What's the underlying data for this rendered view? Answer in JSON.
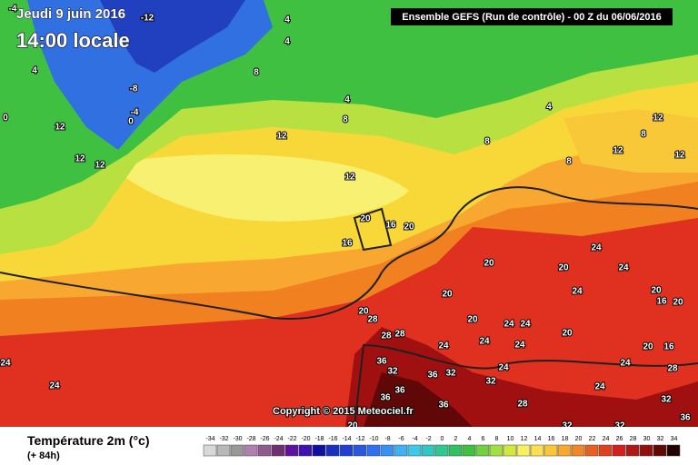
{
  "header": {
    "date": "Jeudi 9 juin 2016",
    "time": "14:00 locale",
    "run": "Ensemble GEFS  (Run de contrôle)  - 00 Z du 06/06/2016"
  },
  "copyright": "Copyright © 2015 Meteociel.fr",
  "legend": {
    "title": "Température 2m (°c)",
    "lead_time": "(+ 84h)",
    "values": [
      -34,
      -32,
      -30,
      -28,
      -26,
      -24,
      -22,
      -20,
      -18,
      -16,
      -14,
      -12,
      -10,
      -8,
      -6,
      -4,
      -2,
      0,
      2,
      4,
      6,
      8,
      10,
      12,
      14,
      16,
      18,
      20,
      22,
      24,
      26,
      28,
      30,
      32,
      34
    ],
    "colors": [
      "#d8d8d8",
      "#b8b8b8",
      "#989898",
      "#b080b0",
      "#905890",
      "#703070",
      "#6010a0",
      "#4010b0",
      "#1010a0",
      "#1830c0",
      "#2040d0",
      "#2858e0",
      "#3070f0",
      "#3890f0",
      "#40b0f0",
      "#40c8e8",
      "#30c8c0",
      "#30c890",
      "#30c060",
      "#40c040",
      "#70d040",
      "#a0e040",
      "#d0e840",
      "#f8f060",
      "#f8e050",
      "#f8c838",
      "#f8a830",
      "#f08828",
      "#e86020",
      "#e04020",
      "#d02020",
      "#b01818",
      "#901010",
      "#600808",
      "#200000"
    ]
  },
  "map_labels": [
    "-4",
    "-12",
    "4",
    "4",
    "4",
    "8",
    "-8",
    "4",
    "0",
    "-4",
    "0",
    "12",
    "8",
    "12",
    "12",
    "12",
    "4",
    "8",
    "12",
    "8",
    "12",
    "12",
    "8",
    "12",
    "20",
    "16",
    "20",
    "16",
    "24",
    "20",
    "20",
    "24",
    "20",
    "24",
    "20",
    "16",
    "20",
    "20",
    "28",
    "20",
    "24",
    "24",
    "28",
    "28",
    "24",
    "24",
    "20",
    "24",
    "20",
    "16",
    "24",
    "36",
    "32",
    "24",
    "36",
    "32",
    "24",
    "28",
    "32",
    "24",
    "36",
    "36",
    "28",
    "36",
    "32",
    "24",
    "20",
    "32",
    "32",
    "36"
  ]
}
